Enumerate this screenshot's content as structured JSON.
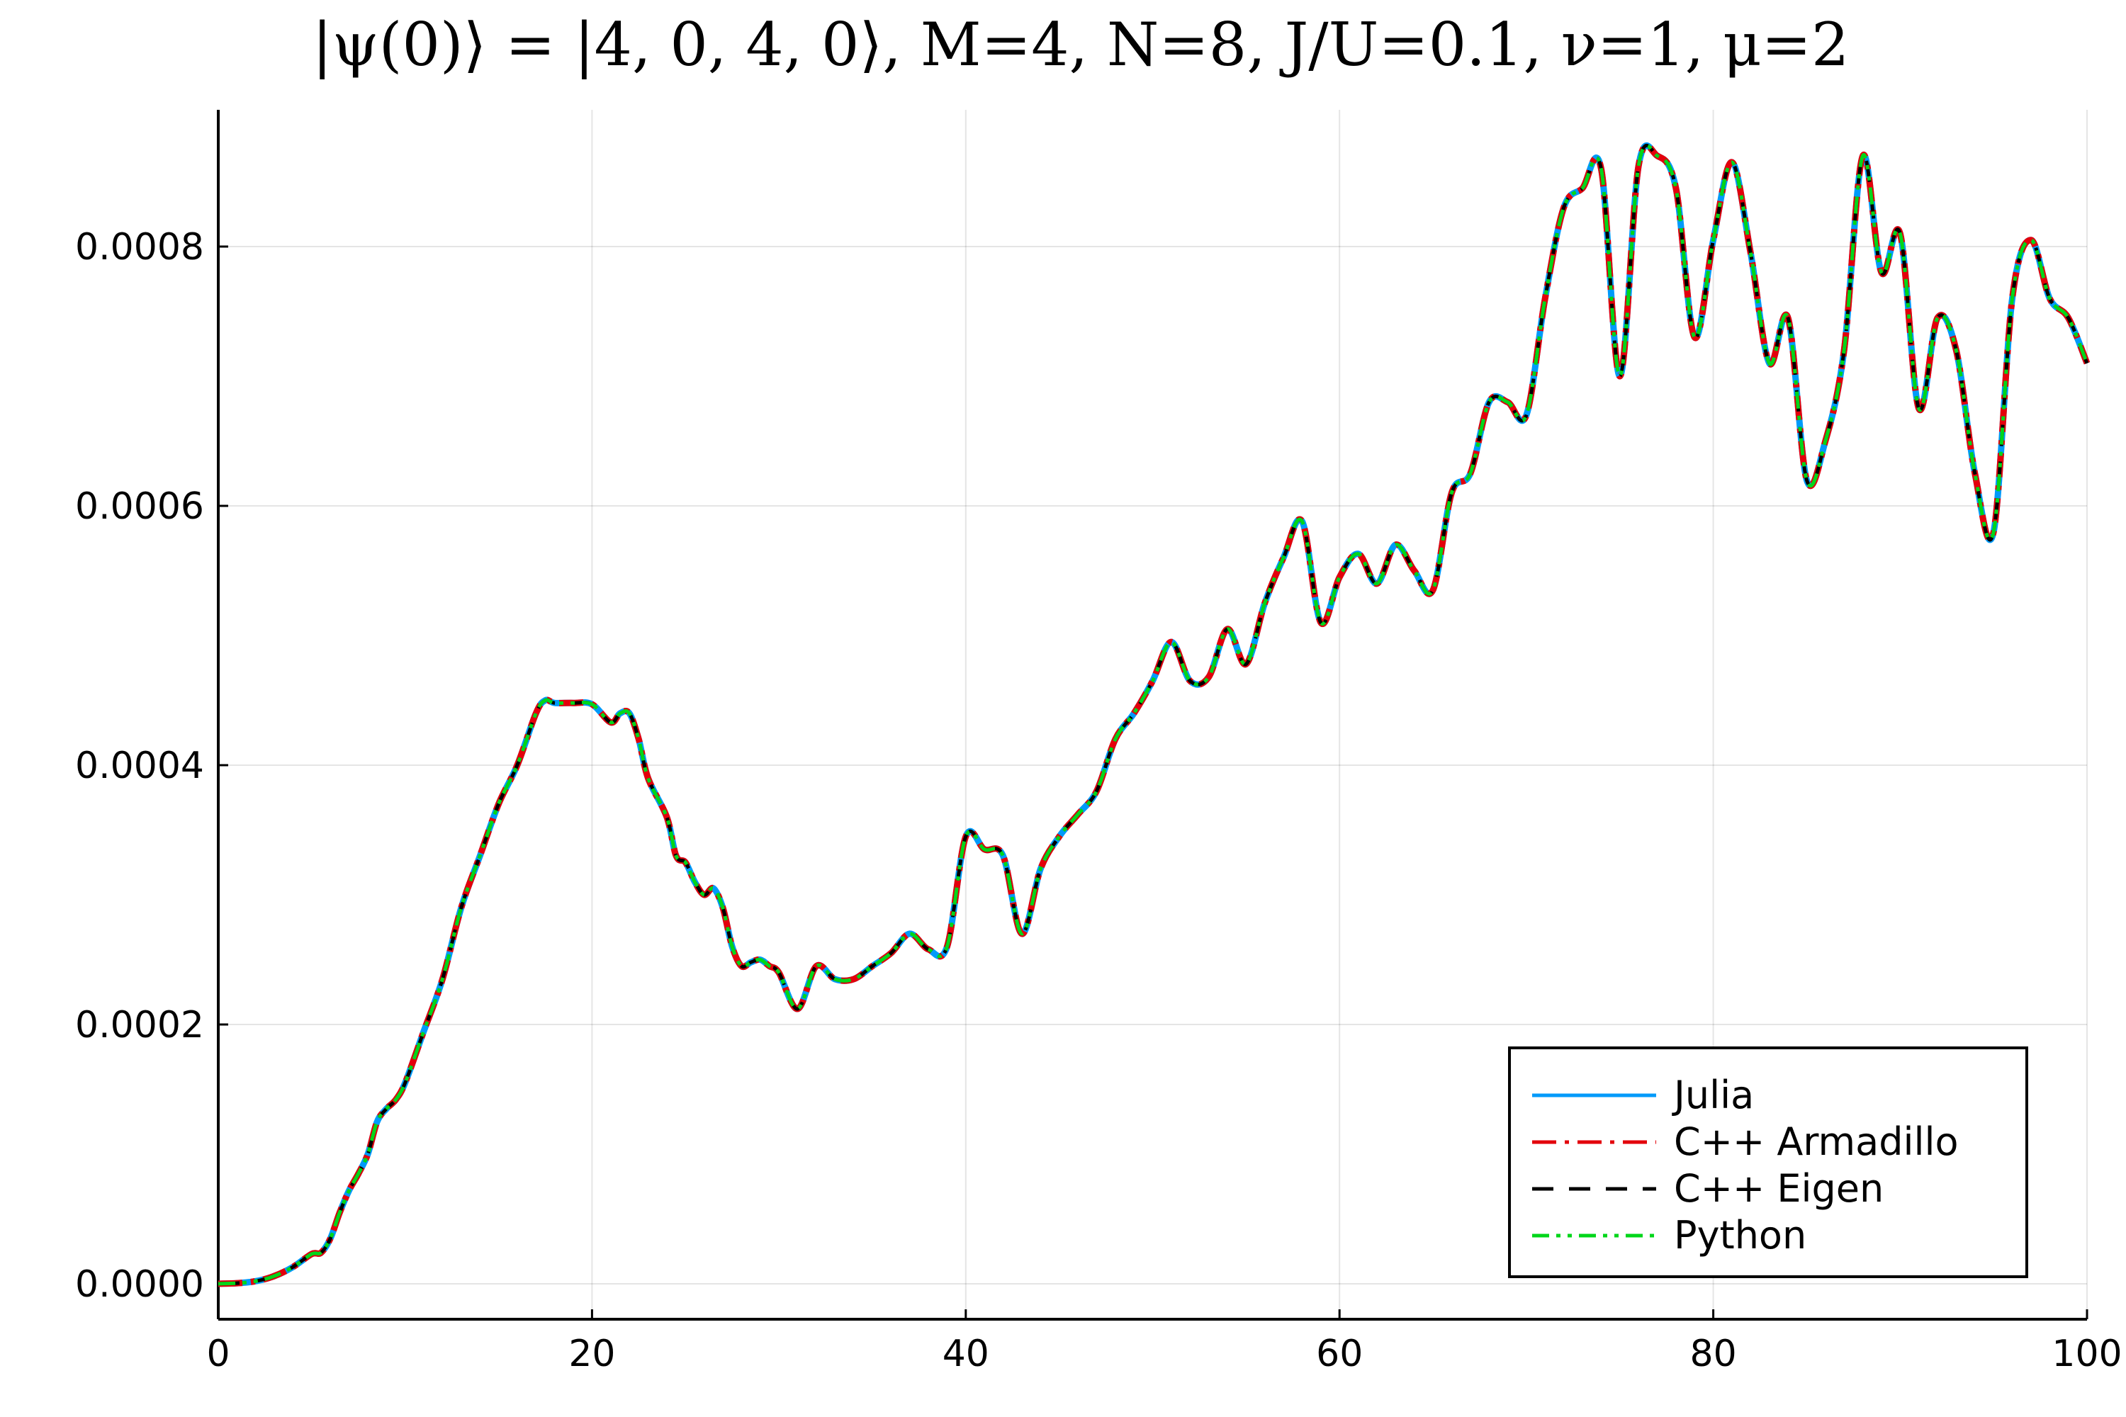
{
  "chart_data": {
    "type": "line",
    "title": "|ψ(0)⟩ = |4, 0, 4, 0⟩, M=4, N=8, J/U=0.1, ν=1, μ=2",
    "xlabel": "",
    "ylabel": "",
    "xlim": [
      0,
      100
    ],
    "ylim": [
      -2.5e-05,
      0.0009
    ],
    "x_ticks": [
      0,
      20,
      40,
      60,
      80,
      100
    ],
    "x_tick_labels": [
      "0",
      "20",
      "40",
      "60",
      "80",
      "100"
    ],
    "y_ticks": [
      0.0,
      0.0002,
      0.0004,
      0.0006,
      0.0008
    ],
    "y_tick_labels": [
      "0.0000",
      "0.0002",
      "0.0004",
      "0.0006",
      "0.0008"
    ],
    "grid": true,
    "legend_position": "bottom-right",
    "x": [
      0,
      1,
      2,
      3,
      4,
      5,
      5.5,
      6,
      6.5,
      7,
      7.5,
      8,
      8.5,
      9,
      9.5,
      10,
      11,
      12,
      13,
      14,
      15,
      16,
      17,
      17.5,
      18,
      19,
      20,
      21,
      21.5,
      22,
      22.5,
      23,
      24,
      24.5,
      25,
      25.5,
      26,
      26.5,
      27,
      27.5,
      28,
      28.5,
      29,
      29.5,
      30,
      31,
      32,
      33,
      34,
      35,
      36,
      37,
      38,
      39,
      40,
      41,
      42,
      43,
      44,
      45,
      46,
      47,
      48,
      49,
      50,
      51,
      52,
      53,
      54,
      55,
      56,
      57,
      58,
      59,
      60,
      61,
      62,
      63,
      64,
      65,
      66,
      67,
      68,
      69,
      70,
      71,
      72,
      73,
      74,
      75,
      76,
      77,
      78,
      79,
      80,
      81,
      82,
      83,
      84,
      85,
      86,
      87,
      88,
      89,
      90,
      91,
      92,
      93,
      94,
      95,
      96,
      97,
      98,
      99,
      100
    ],
    "y": [
      0.0,
      5e-07,
      2e-06,
      6e-06,
      1.3e-05,
      2.3e-05,
      2.4e-05,
      3.5e-05,
      5.5e-05,
      7.2e-05,
      8.5e-05,
      0.0001,
      0.000125,
      0.000135,
      0.000142,
      0.000155,
      0.000195,
      0.000235,
      0.00029,
      0.00033,
      0.00037,
      0.0004,
      0.00044,
      0.00045,
      0.000448,
      0.000448,
      0.000447,
      0.000433,
      0.00044,
      0.00044,
      0.00042,
      0.00039,
      0.00036,
      0.00033,
      0.000325,
      0.00031,
      0.0003,
      0.000305,
      0.00029,
      0.00026,
      0.000245,
      0.000248,
      0.00025,
      0.000245,
      0.00024,
      0.000212,
      0.000245,
      0.000235,
      0.000235,
      0.000245,
      0.000255,
      0.00027,
      0.000258,
      0.00026,
      0.000345,
      0.000335,
      0.00033,
      0.00027,
      0.00032,
      0.000345,
      0.000362,
      0.00038,
      0.00042,
      0.00044,
      0.000465,
      0.000495,
      0.000465,
      0.000468,
      0.000505,
      0.000478,
      0.000525,
      0.00056,
      0.000588,
      0.00051,
      0.000545,
      0.000563,
      0.00054,
      0.00057,
      0.00055,
      0.000535,
      0.00061,
      0.000625,
      0.00068,
      0.00068,
      0.00067,
      0.00076,
      0.00083,
      0.000845,
      0.00086,
      0.0007,
      0.000862,
      0.00087,
      0.000845,
      0.00073,
      0.000805,
      0.000865,
      0.000795,
      0.00071,
      0.000745,
      0.00062,
      0.00065,
      0.00072,
      0.00087,
      0.00078,
      0.00081,
      0.000675,
      0.000745,
      0.00072,
      0.000625,
      0.00058,
      0.00076,
      0.000805,
      0.00076,
      0.000745,
      0.00071
    ],
    "series": [
      {
        "name": "Julia",
        "color": "#009AFA",
        "dash": "solid"
      },
      {
        "name": "C++ Armadillo",
        "color": "#E3000B",
        "dash": "dashdot"
      },
      {
        "name": "C++ Eigen",
        "color": "#000000",
        "dash": "dash"
      },
      {
        "name": "Python",
        "color": "#00D61A",
        "dash": "dashdotdot"
      }
    ]
  }
}
